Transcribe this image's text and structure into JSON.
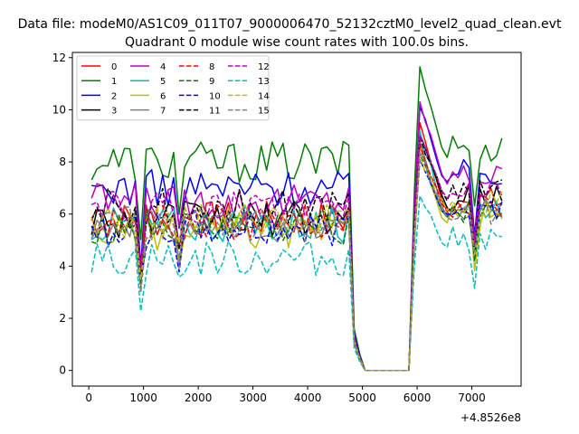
{
  "suptitle": "Data file: modeM0/AS1C09_011T07_9000006470_52132cztM0_level2_quad_clean.evt",
  "chart_data": {
    "type": "line",
    "title": "Quadrant 0 module wise count rates with 100.0s bins.",
    "xlabel": "",
    "ylabel": "",
    "x_offset_label": "+4.8526e8",
    "xlim": [
      -300,
      7900
    ],
    "ylim": [
      -0.6,
      12.2
    ],
    "xticks": [
      0,
      1000,
      2000,
      3000,
      4000,
      5000,
      6000,
      7000
    ],
    "yticks": [
      0,
      2,
      4,
      6,
      8,
      10,
      12
    ],
    "legend_position": "top-left",
    "legend_columns": 4,
    "segments": [
      {
        "start": 50,
        "step": 100,
        "count": 48
      },
      {
        "start": 4850,
        "step": 100,
        "count": 11
      },
      {
        "start": 5950,
        "step": 100,
        "count": 17
      }
    ],
    "series": [
      {
        "name": "0",
        "color": "#ff0000",
        "dash": "solid",
        "base": 5.8,
        "amp": 0.35,
        "after": 6.5,
        "peak": 9.5
      },
      {
        "name": "1",
        "color": "#008000",
        "dash": "solid",
        "base": 8.0,
        "amp": 0.4,
        "after": 8.6,
        "peak": 11.65
      },
      {
        "name": "2",
        "color": "#0000ff",
        "dash": "solid",
        "base": 7.0,
        "amp": 0.35,
        "after": 7.6,
        "peak": 10.1
      },
      {
        "name": "3",
        "color": "#000000",
        "dash": "solid",
        "base": 5.8,
        "amp": 0.35,
        "after": 6.6,
        "peak": 9.1
      },
      {
        "name": "4",
        "color": "#bf00bf",
        "dash": "solid",
        "base": 6.5,
        "amp": 0.35,
        "after": 7.5,
        "peak": 10.3
      },
      {
        "name": "5",
        "color": "#00bfbf",
        "dash": "solid",
        "base": 5.6,
        "amp": 0.35,
        "after": 6.3,
        "peak": 9.2
      },
      {
        "name": "6",
        "color": "#bfbf00",
        "dash": "solid",
        "base": 5.3,
        "amp": 0.35,
        "after": 6.0,
        "peak": 8.6
      },
      {
        "name": "7",
        "color": "#808080",
        "dash": "solid",
        "base": 5.6,
        "amp": 0.35,
        "after": 6.2,
        "peak": 8.8
      },
      {
        "name": "8",
        "color": "#ff0000",
        "dash": "dashed",
        "base": 5.7,
        "amp": 0.35,
        "after": 6.4,
        "peak": 8.7
      },
      {
        "name": "9",
        "color": "#008000",
        "dash": "dashed",
        "base": 5.5,
        "amp": 0.35,
        "after": 6.2,
        "peak": 8.3
      },
      {
        "name": "10",
        "color": "#0000ff",
        "dash": "dashed",
        "base": 5.4,
        "amp": 0.35,
        "after": 6.3,
        "peak": 8.1
      },
      {
        "name": "11",
        "color": "#000000",
        "dash": "dashed",
        "base": 6.3,
        "amp": 0.35,
        "after": 6.8,
        "peak": 9.0
      },
      {
        "name": "12",
        "color": "#bf00bf",
        "dash": "dashed",
        "base": 6.2,
        "amp": 0.35,
        "after": 6.9,
        "peak": 9.0
      },
      {
        "name": "13",
        "color": "#00bfbf",
        "dash": "dashed",
        "base": 4.3,
        "amp": 0.35,
        "after": 5.0,
        "peak": 6.7
      },
      {
        "name": "14",
        "color": "#bfbf00",
        "dash": "dashed",
        "base": 5.7,
        "amp": 0.35,
        "after": 6.4,
        "peak": 8.2
      },
      {
        "name": "15",
        "color": "#808080",
        "dash": "dashed",
        "base": 5.6,
        "amp": 0.35,
        "after": 6.1,
        "peak": 8.4
      }
    ],
    "dips": [
      {
        "x": 950,
        "factor": 0.6
      },
      {
        "x": 1650,
        "factor": 0.77
      },
      {
        "x": 7050,
        "factor": 0.7
      }
    ]
  }
}
